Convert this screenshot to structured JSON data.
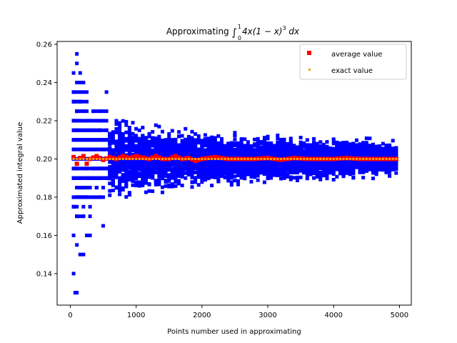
{
  "chart_data": {
    "type": "scatter",
    "title": "Approximating ∫₀¹4x(1 − x)³ dx",
    "title_parts": {
      "main": "Approximating ",
      "integral": "∫",
      "upper": "1",
      "lower": "0",
      "integrand": "4x(1 − x)",
      "power": "3",
      "dx": " dx"
    },
    "xlabel": "Points number used in approximating",
    "ylabel": "Approximated integral value",
    "xlim": [
      -200,
      5180
    ],
    "ylim": [
      0.1235,
      0.2615
    ],
    "xticks": [
      0,
      1000,
      2000,
      3000,
      4000,
      5000
    ],
    "yticks": [
      0.14,
      0.16,
      0.18,
      0.2,
      0.22,
      0.24,
      0.26
    ],
    "xtick_labels": [
      "0",
      "1000",
      "2000",
      "3000",
      "4000",
      "5000"
    ],
    "ytick_labels": [
      "0.14",
      "0.16",
      "0.18",
      "0.20",
      "0.22",
      "0.24",
      "0.26"
    ],
    "legend_position": "upper right",
    "exact_value": 0.2,
    "x_range": [
      50,
      4950
    ],
    "x_step": 50,
    "series": [
      {
        "name": "",
        "role": "samples",
        "marker": "square",
        "color": "#0000ff",
        "samples_per_x": 50,
        "spread_envelope": [
          [
            50,
            0.055
          ],
          [
            100,
            0.05
          ],
          [
            200,
            0.04
          ],
          [
            300,
            0.03
          ],
          [
            500,
            0.025
          ],
          [
            1000,
            0.018
          ],
          [
            2000,
            0.014
          ],
          [
            3000,
            0.012
          ],
          [
            4000,
            0.011
          ],
          [
            4950,
            0.009
          ]
        ],
        "notable_points": [
          [
            100,
            0.255
          ],
          [
            100,
            0.25
          ],
          [
            50,
            0.245
          ],
          [
            100,
            0.13
          ],
          [
            75,
            0.13
          ],
          [
            150,
            0.15
          ],
          [
            200,
            0.15
          ],
          [
            50,
            0.16
          ],
          [
            100,
            0.17
          ],
          [
            300,
            0.16
          ],
          [
            500,
            0.165
          ]
        ]
      },
      {
        "name": "average value",
        "role": "average",
        "marker": "square",
        "color": "#ff0000",
        "values": [
          [
            50,
            0.201
          ],
          [
            100,
            0.1975
          ],
          [
            150,
            0.2005
          ],
          [
            200,
            0.2015
          ],
          [
            250,
            0.1975
          ],
          [
            300,
            0.2
          ],
          [
            400,
            0.2015
          ],
          [
            500,
            0.1995
          ],
          [
            600,
            0.201
          ],
          [
            700,
            0.2
          ],
          [
            800,
            0.2015
          ],
          [
            900,
            0.2005
          ],
          [
            1000,
            0.2015
          ],
          [
            1200,
            0.2
          ],
          [
            1300,
            0.2015
          ],
          [
            1400,
            0.2
          ],
          [
            1500,
            0.2
          ],
          [
            1600,
            0.2015
          ],
          [
            1700,
            0.2
          ],
          [
            1800,
            0.2005
          ],
          [
            1900,
            0.199
          ],
          [
            2000,
            0.2
          ],
          [
            2200,
            0.201
          ],
          [
            2400,
            0.2
          ],
          [
            2600,
            0.2
          ],
          [
            2800,
            0.2
          ],
          [
            3000,
            0.2005
          ],
          [
            3200,
            0.1995
          ],
          [
            3400,
            0.2005
          ],
          [
            3600,
            0.2
          ],
          [
            3800,
            0.2
          ],
          [
            4000,
            0.2
          ],
          [
            4200,
            0.2005
          ],
          [
            4400,
            0.2
          ],
          [
            4600,
            0.2
          ],
          [
            4800,
            0.2
          ],
          [
            4950,
            0.2
          ]
        ]
      },
      {
        "name": "exact value",
        "role": "exact",
        "marker": "square",
        "color": "#ffa500",
        "value": 0.2
      }
    ]
  }
}
